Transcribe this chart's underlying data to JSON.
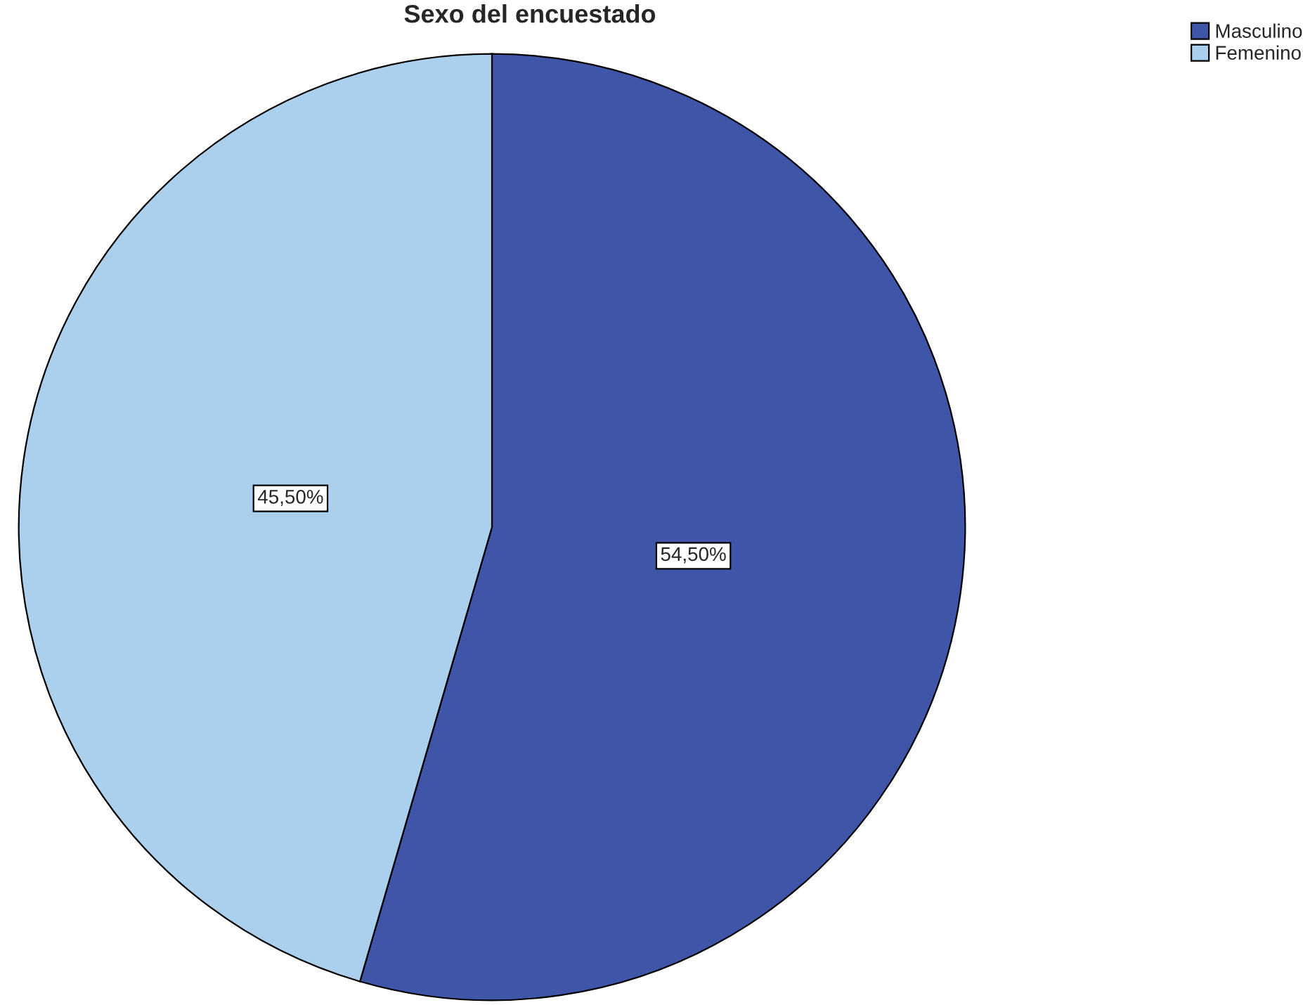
{
  "chart_data": {
    "type": "pie",
    "title": "Sexo del encuestado",
    "categories": [
      "Masculino",
      "Femenino"
    ],
    "values": [
      54.5,
      45.5
    ],
    "colors": [
      "#3f56a8",
      "#abd0ee"
    ],
    "value_labels": [
      "54,50%",
      "45,50%"
    ],
    "legend": "top right"
  }
}
